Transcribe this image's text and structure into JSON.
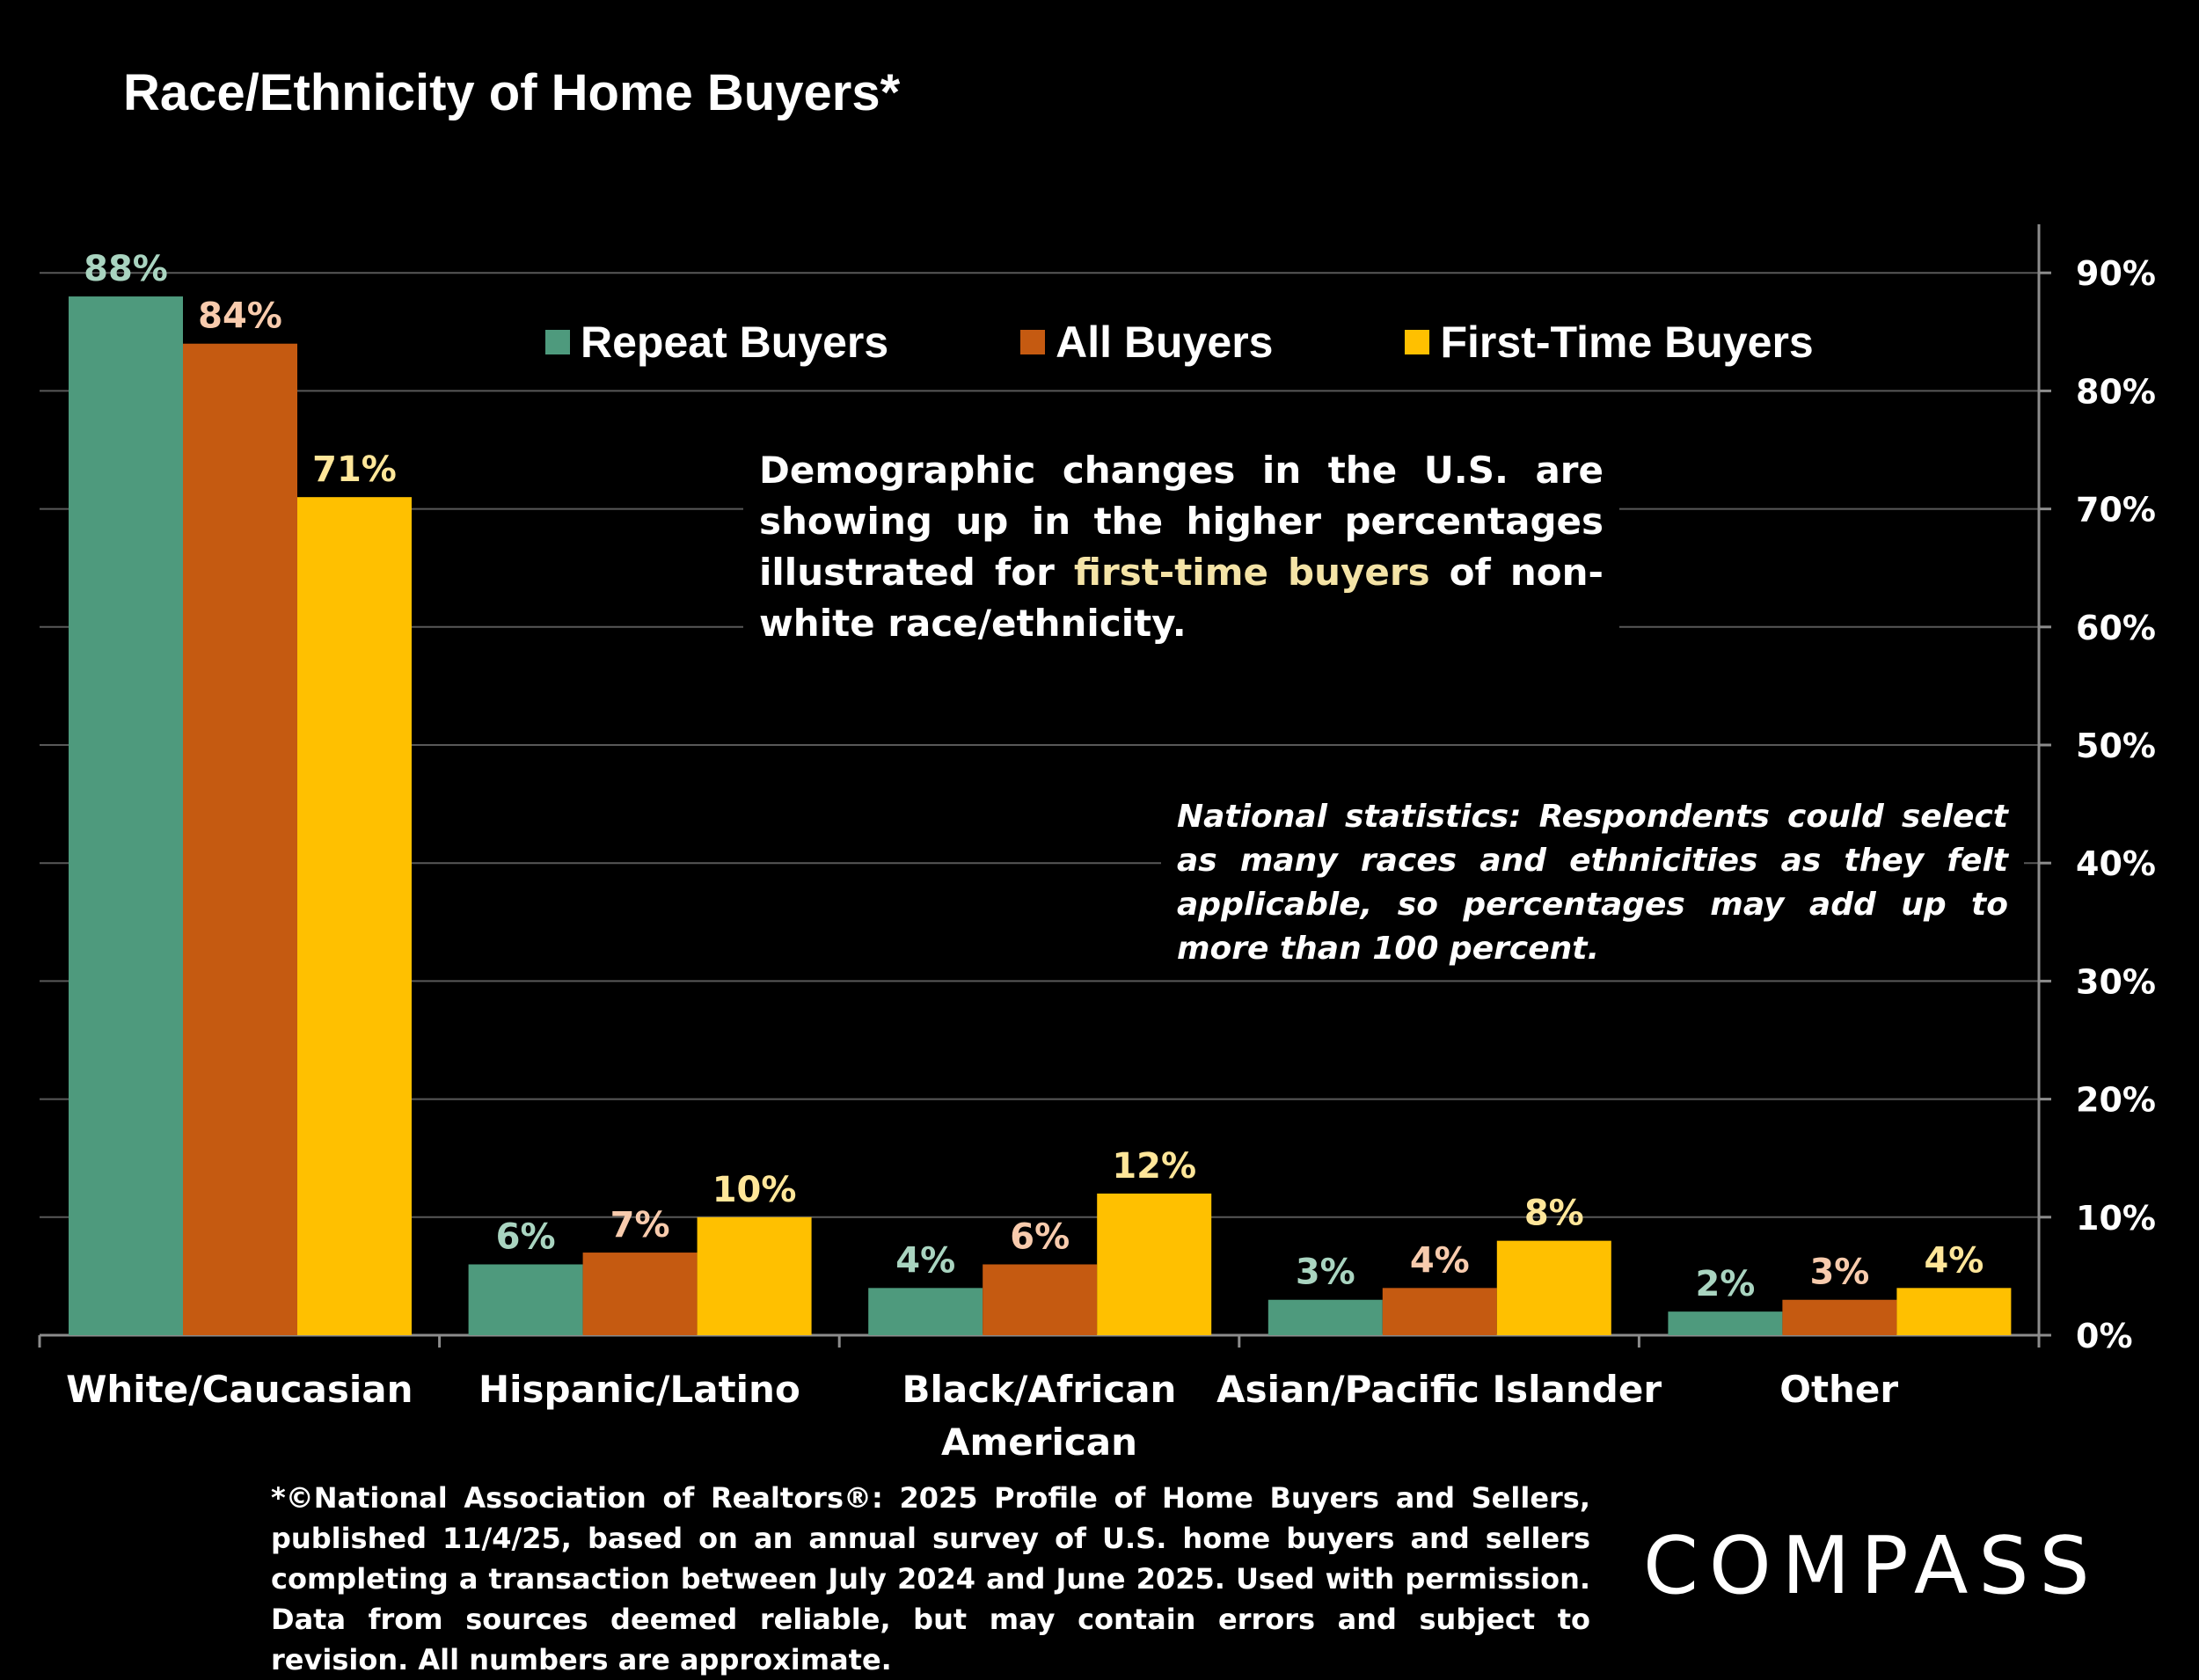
{
  "title": "Race/Ethnicity of Home Buyers*",
  "legend": {
    "items": [
      {
        "label": "Repeat Buyers",
        "color": "#4e9a7d"
      },
      {
        "label": "All Buyers",
        "color": "#c55a11"
      },
      {
        "label": "First-Time Buyers",
        "color": "#ffc000"
      }
    ]
  },
  "callout": {
    "text_before": "Demographic changes in the U.S. are showing up in the higher percentages illustrated for ",
    "highlight": "first-time buyers",
    "text_after": " of non-white race/ethnicity."
  },
  "note": "National statistics:  Respondents could select as many races and ethnicities as they felt applicable, so percentages may add up to more than 100 percent.",
  "footnote": "*©National Association of Realtors®: 2025 Profile of Home Buyers and Sellers, published 11/4/25, based on an annual survey of U.S. home buyers and sellers completing a transaction between July 2024 and June 2025. Used with permission. Data from sources deemed reliable, but may contain errors and subject to revision. All numbers are approximate.",
  "logo": "COMPASS",
  "chart_data": {
    "type": "bar",
    "title": "Race/Ethnicity of Home Buyers*",
    "categories": [
      "White/Caucasian",
      "Hispanic/Latino",
      "Black/African American",
      "Asian/Pacific Islander",
      "Other"
    ],
    "series": [
      {
        "name": "Repeat Buyers",
        "values": [
          88,
          6,
          4,
          3,
          2
        ],
        "color": "#4e9a7d",
        "label_color": "#a9d4c0"
      },
      {
        "name": "All Buyers",
        "values": [
          84,
          7,
          6,
          4,
          3
        ],
        "color": "#c55a11",
        "label_color": "#f8cbad"
      },
      {
        "name": "First-Time Buyers",
        "values": [
          71,
          10,
          12,
          8,
          4
        ],
        "color": "#ffc000",
        "label_color": "#ffe699"
      }
    ],
    "yaxis": {
      "position": "right",
      "ticks": [
        "0%",
        "10%",
        "20%",
        "30%",
        "40%",
        "50%",
        "60%",
        "70%",
        "80%",
        "90%"
      ],
      "tick_values": [
        0,
        10,
        20,
        30,
        40,
        50,
        60,
        70,
        80,
        90
      ]
    },
    "ylim": [
      0,
      94
    ],
    "grid": true,
    "legend_position": "top"
  }
}
